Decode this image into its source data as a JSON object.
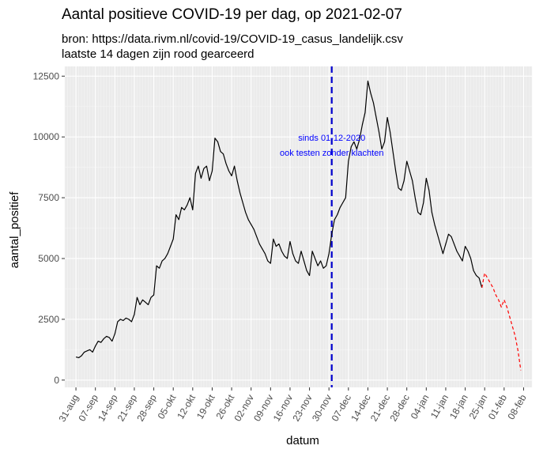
{
  "chart_data": {
    "type": "line",
    "title": "Aantal positieve COVID-19 per dag, op 2021-02-07",
    "subtitle": [
      "bron: https://data.rivm.nl/covid-19/COVID-19_casus_landelijk.csv",
      "laatste 14 dagen zijn rood gearceerd"
    ],
    "xlabel": "datum",
    "ylabel": "aantal_positief",
    "xlim": [
      "2020-08-27",
      "2021-02-11"
    ],
    "ylim": [
      -300,
      12900
    ],
    "y_ticks": [
      0,
      2500,
      5000,
      7500,
      10000,
      12500
    ],
    "x_ticks": [
      {
        "date": "2020-08-31",
        "label": "31-aug"
      },
      {
        "date": "2020-09-07",
        "label": "07-sep"
      },
      {
        "date": "2020-09-14",
        "label": "14-sep"
      },
      {
        "date": "2020-09-21",
        "label": "21-sep"
      },
      {
        "date": "2020-09-28",
        "label": "28-sep"
      },
      {
        "date": "2020-10-05",
        "label": "05-okt"
      },
      {
        "date": "2020-10-12",
        "label": "12-okt"
      },
      {
        "date": "2020-10-19",
        "label": "19-okt"
      },
      {
        "date": "2020-10-26",
        "label": "26-okt"
      },
      {
        "date": "2020-11-02",
        "label": "02-nov"
      },
      {
        "date": "2020-11-09",
        "label": "09-nov"
      },
      {
        "date": "2020-11-16",
        "label": "16-nov"
      },
      {
        "date": "2020-11-23",
        "label": "23-nov"
      },
      {
        "date": "2020-11-30",
        "label": "30-nov"
      },
      {
        "date": "2020-12-07",
        "label": "07-dec"
      },
      {
        "date": "2020-12-14",
        "label": "14-dec"
      },
      {
        "date": "2020-12-21",
        "label": "21-dec"
      },
      {
        "date": "2020-12-28",
        "label": "28-dec"
      },
      {
        "date": "2021-01-04",
        "label": "04-jan"
      },
      {
        "date": "2021-01-11",
        "label": "11-jan"
      },
      {
        "date": "2021-01-18",
        "label": "18-jan"
      },
      {
        "date": "2021-01-25",
        "label": "25-jan"
      },
      {
        "date": "2021-02-01",
        "label": "01-feb"
      },
      {
        "date": "2021-02-08",
        "label": "08-feb"
      }
    ],
    "grid": true,
    "colors": {
      "panel": "#ebebeb",
      "grid_major": "#ffffff",
      "grid_minor": "#f5f5f5",
      "main_line": "#000000",
      "recent_line": "#ff0000",
      "vline": "#0000cd",
      "annotation": "#0000ff"
    },
    "vline": {
      "date": "2020-12-01",
      "style": "dashed"
    },
    "annotation": {
      "date": "2020-12-01",
      "y": 9850,
      "lines": [
        "sinds 01-12-2020",
        "ook testen zonder klachten"
      ]
    },
    "series": [
      {
        "style": "solid",
        "color": "#000000",
        "points": [
          [
            "2020-08-31",
            950
          ],
          [
            "2020-09-01",
            920
          ],
          [
            "2020-09-02",
            1000
          ],
          [
            "2020-09-03",
            1150
          ],
          [
            "2020-09-04",
            1200
          ],
          [
            "2020-09-05",
            1250
          ],
          [
            "2020-09-06",
            1150
          ],
          [
            "2020-09-07",
            1400
          ],
          [
            "2020-09-08",
            1600
          ],
          [
            "2020-09-09",
            1550
          ],
          [
            "2020-09-10",
            1700
          ],
          [
            "2020-09-11",
            1800
          ],
          [
            "2020-09-12",
            1750
          ],
          [
            "2020-09-13",
            1600
          ],
          [
            "2020-09-14",
            1900
          ],
          [
            "2020-09-15",
            2400
          ],
          [
            "2020-09-16",
            2500
          ],
          [
            "2020-09-17",
            2450
          ],
          [
            "2020-09-18",
            2550
          ],
          [
            "2020-09-19",
            2500
          ],
          [
            "2020-09-20",
            2400
          ],
          [
            "2020-09-21",
            2700
          ],
          [
            "2020-09-22",
            3400
          ],
          [
            "2020-09-23",
            3100
          ],
          [
            "2020-09-24",
            3300
          ],
          [
            "2020-09-25",
            3200
          ],
          [
            "2020-09-26",
            3100
          ],
          [
            "2020-09-27",
            3400
          ],
          [
            "2020-09-28",
            3500
          ],
          [
            "2020-09-29",
            4700
          ],
          [
            "2020-09-30",
            4600
          ],
          [
            "2020-10-01",
            4900
          ],
          [
            "2020-10-02",
            5000
          ],
          [
            "2020-10-03",
            5200
          ],
          [
            "2020-10-04",
            5500
          ],
          [
            "2020-10-05",
            5800
          ],
          [
            "2020-10-06",
            6800
          ],
          [
            "2020-10-07",
            6600
          ],
          [
            "2020-10-08",
            7100
          ],
          [
            "2020-10-09",
            7000
          ],
          [
            "2020-10-10",
            7200
          ],
          [
            "2020-10-11",
            7500
          ],
          [
            "2020-10-12",
            7000
          ],
          [
            "2020-10-13",
            8500
          ],
          [
            "2020-10-14",
            8800
          ],
          [
            "2020-10-15",
            8300
          ],
          [
            "2020-10-16",
            8700
          ],
          [
            "2020-10-17",
            8800
          ],
          [
            "2020-10-18",
            8200
          ],
          [
            "2020-10-19",
            8600
          ],
          [
            "2020-10-20",
            9950
          ],
          [
            "2020-10-21",
            9800
          ],
          [
            "2020-10-22",
            9400
          ],
          [
            "2020-10-23",
            9300
          ],
          [
            "2020-10-24",
            8900
          ],
          [
            "2020-10-25",
            8600
          ],
          [
            "2020-10-26",
            8400
          ],
          [
            "2020-10-27",
            8800
          ],
          [
            "2020-10-28",
            8200
          ],
          [
            "2020-10-29",
            7700
          ],
          [
            "2020-10-30",
            7300
          ],
          [
            "2020-10-31",
            6900
          ],
          [
            "2020-11-01",
            6600
          ],
          [
            "2020-11-02",
            6400
          ],
          [
            "2020-11-03",
            6200
          ],
          [
            "2020-11-04",
            5900
          ],
          [
            "2020-11-05",
            5600
          ],
          [
            "2020-11-06",
            5400
          ],
          [
            "2020-11-07",
            5200
          ],
          [
            "2020-11-08",
            4900
          ],
          [
            "2020-11-09",
            4800
          ],
          [
            "2020-11-10",
            5800
          ],
          [
            "2020-11-11",
            5500
          ],
          [
            "2020-11-12",
            5600
          ],
          [
            "2020-11-13",
            5300
          ],
          [
            "2020-11-14",
            5100
          ],
          [
            "2020-11-15",
            5000
          ],
          [
            "2020-11-16",
            5700
          ],
          [
            "2020-11-17",
            5200
          ],
          [
            "2020-11-18",
            4900
          ],
          [
            "2020-11-19",
            4800
          ],
          [
            "2020-11-20",
            5300
          ],
          [
            "2020-11-21",
            4900
          ],
          [
            "2020-11-22",
            4500
          ],
          [
            "2020-11-23",
            4300
          ],
          [
            "2020-11-24",
            5300
          ],
          [
            "2020-11-25",
            5000
          ],
          [
            "2020-11-26",
            4700
          ],
          [
            "2020-11-27",
            4900
          ],
          [
            "2020-11-28",
            4600
          ],
          [
            "2020-11-29",
            4700
          ],
          [
            "2020-11-30",
            5200
          ],
          [
            "2020-12-01",
            6000
          ],
          [
            "2020-12-02",
            6600
          ],
          [
            "2020-12-03",
            6800
          ],
          [
            "2020-12-04",
            7100
          ],
          [
            "2020-12-05",
            7300
          ],
          [
            "2020-12-06",
            7500
          ],
          [
            "2020-12-07",
            9000
          ],
          [
            "2020-12-08",
            9600
          ],
          [
            "2020-12-09",
            9800
          ],
          [
            "2020-12-10",
            9500
          ],
          [
            "2020-12-11",
            9900
          ],
          [
            "2020-12-12",
            10500
          ],
          [
            "2020-12-13",
            11000
          ],
          [
            "2020-12-14",
            12300
          ],
          [
            "2020-12-15",
            11800
          ],
          [
            "2020-12-16",
            11400
          ],
          [
            "2020-12-17",
            10800
          ],
          [
            "2020-12-18",
            10200
          ],
          [
            "2020-12-19",
            9500
          ],
          [
            "2020-12-20",
            9800
          ],
          [
            "2020-12-21",
            10800
          ],
          [
            "2020-12-22",
            10200
          ],
          [
            "2020-12-23",
            9400
          ],
          [
            "2020-12-24",
            8600
          ],
          [
            "2020-12-25",
            7900
          ],
          [
            "2020-12-26",
            7800
          ],
          [
            "2020-12-27",
            8200
          ],
          [
            "2020-12-28",
            9000
          ],
          [
            "2020-12-29",
            8600
          ],
          [
            "2020-12-30",
            8200
          ],
          [
            "2020-12-31",
            7500
          ],
          [
            "2021-01-01",
            6900
          ],
          [
            "2021-01-02",
            6800
          ],
          [
            "2021-01-03",
            7300
          ],
          [
            "2021-01-04",
            8300
          ],
          [
            "2021-01-05",
            7800
          ],
          [
            "2021-01-06",
            6900
          ],
          [
            "2021-01-07",
            6400
          ],
          [
            "2021-01-08",
            6000
          ],
          [
            "2021-01-09",
            5600
          ],
          [
            "2021-01-10",
            5200
          ],
          [
            "2021-01-11",
            5600
          ],
          [
            "2021-01-12",
            6000
          ],
          [
            "2021-01-13",
            5900
          ],
          [
            "2021-01-14",
            5600
          ],
          [
            "2021-01-15",
            5300
          ],
          [
            "2021-01-16",
            5100
          ],
          [
            "2021-01-17",
            4900
          ],
          [
            "2021-01-18",
            5500
          ],
          [
            "2021-01-19",
            5300
          ],
          [
            "2021-01-20",
            5000
          ],
          [
            "2021-01-21",
            4500
          ],
          [
            "2021-01-22",
            4300
          ],
          [
            "2021-01-23",
            4200
          ],
          [
            "2021-01-24",
            3800
          ]
        ]
      },
      {
        "style": "dashed",
        "color": "#ff0000",
        "points": [
          [
            "2021-01-24",
            3800
          ],
          [
            "2021-01-25",
            4400
          ],
          [
            "2021-01-26",
            4200
          ],
          [
            "2021-01-27",
            4000
          ],
          [
            "2021-01-28",
            3800
          ],
          [
            "2021-01-29",
            3500
          ],
          [
            "2021-01-30",
            3300
          ],
          [
            "2021-01-31",
            3000
          ],
          [
            "2021-02-01",
            3300
          ],
          [
            "2021-02-02",
            3000
          ],
          [
            "2021-02-03",
            2600
          ],
          [
            "2021-02-04",
            2200
          ],
          [
            "2021-02-05",
            1800
          ],
          [
            "2021-02-06",
            1200
          ],
          [
            "2021-02-07",
            400
          ]
        ]
      }
    ]
  }
}
